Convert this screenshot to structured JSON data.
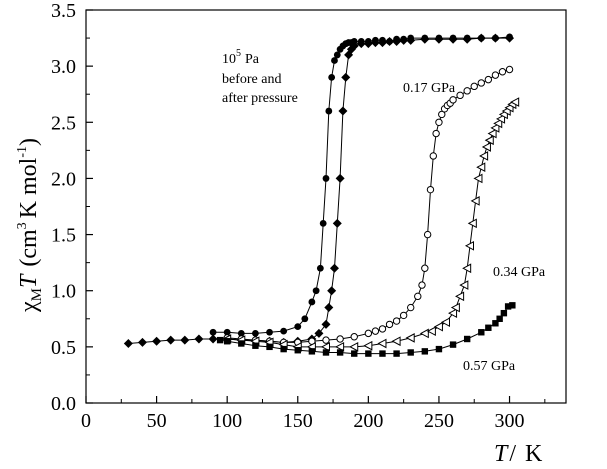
{
  "chart_data": {
    "type": "scatter",
    "title": "",
    "xlabel": "T / K",
    "ylabel": "χMT (cm3 K mol-1)",
    "xlim": [
      0,
      340
    ],
    "ylim": [
      0.0,
      3.5
    ],
    "xticks": [
      "0",
      "50",
      "100",
      "150",
      "200",
      "250",
      "300"
    ],
    "yticks": [
      "0.0",
      "0.5",
      "1.0",
      "1.5",
      "2.0",
      "2.5",
      "3.0",
      "3.5"
    ],
    "grid": false,
    "axis_title": {
      "x_italic": "T",
      "x_sep": "/",
      "x_unit": "K",
      "y_chi": "χ",
      "y_chi_sub": "M",
      "y_T": "T",
      "y_unit_open": "(cm",
      "y_unit_exp": "3",
      "y_unit_mid": "K mol",
      "y_unit_exp2": "-1",
      "y_unit_close": ")"
    },
    "annotations": {
      "ambient_base": "10",
      "ambient_exp": "5",
      "ambient_unit": "Pa",
      "ambient_line2": "before and",
      "ambient_line3": "after pressure",
      "p017": "0.17 GPa",
      "p034": "0.34 GPa",
      "p057": "0.57 GPa"
    },
    "series": [
      {
        "name": "10^5 Pa before pressure",
        "marker": "circle-filled",
        "x": [
          90,
          100,
          110,
          120,
          130,
          140,
          150,
          155,
          160,
          163,
          166,
          168,
          170,
          172,
          174,
          176,
          178,
          180,
          182,
          184,
          186,
          188,
          190,
          195,
          200,
          205,
          210,
          215,
          220,
          225,
          230,
          240,
          250,
          260,
          270,
          280,
          290,
          300
        ],
        "y": [
          0.63,
          0.63,
          0.62,
          0.62,
          0.63,
          0.64,
          0.68,
          0.75,
          0.9,
          1.0,
          1.2,
          1.6,
          2.0,
          2.6,
          2.9,
          3.05,
          3.1,
          3.15,
          3.18,
          3.2,
          3.21,
          3.21,
          3.22,
          3.22,
          3.22,
          3.23,
          3.23,
          3.22,
          3.24,
          3.24,
          3.25,
          3.25,
          3.25,
          3.25,
          3.25,
          3.25,
          3.25,
          3.26
        ]
      },
      {
        "name": "10^5 Pa after pressure",
        "marker": "diamond-filled",
        "x": [
          30,
          40,
          50,
          60,
          70,
          80,
          90,
          100,
          110,
          120,
          130,
          140,
          150,
          160,
          165,
          170,
          172,
          174,
          176,
          178,
          180,
          182,
          184,
          186,
          188,
          190,
          195,
          200,
          205,
          210,
          215,
          220,
          225,
          230,
          240,
          250,
          260,
          270,
          280,
          290,
          300
        ],
        "y": [
          0.53,
          0.54,
          0.55,
          0.56,
          0.56,
          0.57,
          0.57,
          0.57,
          0.56,
          0.56,
          0.55,
          0.54,
          0.55,
          0.57,
          0.62,
          0.7,
          0.85,
          1.0,
          1.2,
          1.6,
          2.0,
          2.6,
          2.9,
          3.1,
          3.15,
          3.18,
          3.2,
          3.2,
          3.21,
          3.21,
          3.22,
          3.22,
          3.23,
          3.23,
          3.24,
          3.24,
          3.24,
          3.24,
          3.25,
          3.25,
          3.25
        ]
      },
      {
        "name": "0.17 GPa",
        "marker": "circle-open",
        "x": [
          100,
          110,
          120,
          130,
          140,
          150,
          160,
          170,
          180,
          190,
          200,
          205,
          210,
          215,
          220,
          225,
          230,
          235,
          238,
          240,
          242,
          244,
          246,
          248,
          250,
          252,
          254,
          256,
          258,
          260,
          265,
          270,
          275,
          280,
          285,
          290,
          295,
          300
        ],
        "y": [
          0.58,
          0.57,
          0.56,
          0.55,
          0.54,
          0.54,
          0.55,
          0.56,
          0.57,
          0.59,
          0.62,
          0.64,
          0.66,
          0.7,
          0.73,
          0.78,
          0.85,
          0.95,
          1.05,
          1.2,
          1.5,
          1.9,
          2.2,
          2.4,
          2.5,
          2.57,
          2.62,
          2.65,
          2.67,
          2.7,
          2.74,
          2.78,
          2.82,
          2.85,
          2.88,
          2.92,
          2.95,
          2.97
        ]
      },
      {
        "name": "0.34 GPa",
        "marker": "triangle-left-open",
        "x": [
          100,
          110,
          120,
          130,
          140,
          150,
          160,
          170,
          180,
          190,
          200,
          210,
          220,
          230,
          240,
          245,
          250,
          255,
          260,
          262,
          265,
          268,
          270,
          272,
          274,
          276,
          278,
          280,
          282,
          284,
          286,
          288,
          290,
          292,
          294,
          296,
          298,
          300,
          302,
          304
        ],
        "y": [
          0.57,
          0.56,
          0.55,
          0.54,
          0.52,
          0.5,
          0.5,
          0.5,
          0.5,
          0.5,
          0.51,
          0.53,
          0.55,
          0.58,
          0.62,
          0.64,
          0.68,
          0.72,
          0.8,
          0.85,
          0.95,
          1.05,
          1.2,
          1.4,
          1.6,
          1.8,
          2.0,
          2.1,
          2.2,
          2.28,
          2.34,
          2.4,
          2.45,
          2.49,
          2.53,
          2.57,
          2.6,
          2.63,
          2.66,
          2.68
        ]
      },
      {
        "name": "0.57 GPa",
        "marker": "square-filled",
        "x": [
          95,
          100,
          110,
          120,
          130,
          140,
          150,
          160,
          170,
          180,
          190,
          200,
          210,
          220,
          230,
          240,
          250,
          260,
          270,
          280,
          285,
          290,
          293,
          296,
          299,
          302
        ],
        "y": [
          0.56,
          0.55,
          0.53,
          0.51,
          0.5,
          0.48,
          0.47,
          0.46,
          0.45,
          0.45,
          0.44,
          0.44,
          0.44,
          0.44,
          0.45,
          0.46,
          0.48,
          0.52,
          0.57,
          0.63,
          0.67,
          0.71,
          0.75,
          0.8,
          0.86,
          0.87
        ]
      }
    ]
  }
}
